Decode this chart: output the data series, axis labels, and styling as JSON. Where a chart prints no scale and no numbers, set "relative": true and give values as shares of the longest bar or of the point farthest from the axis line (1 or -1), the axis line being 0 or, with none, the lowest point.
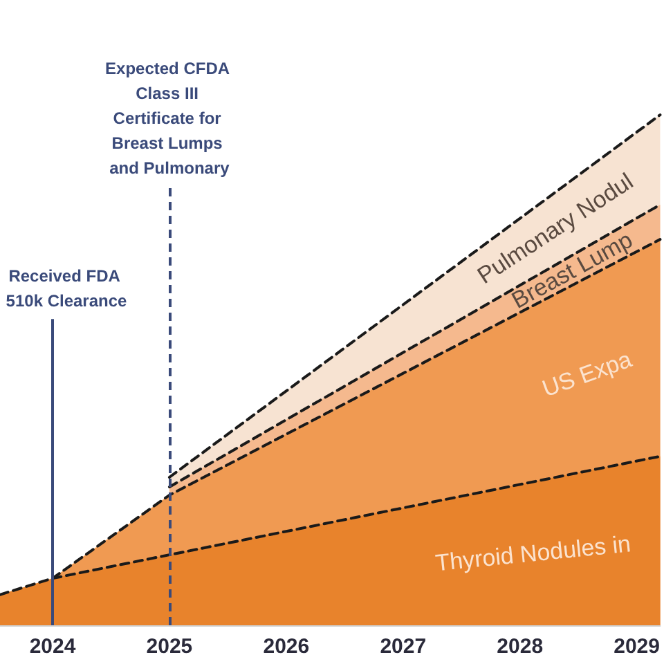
{
  "chart_data": {
    "type": "area",
    "relative": true,
    "stacked": true,
    "x": [
      2023.55,
      2024,
      2025,
      2029.2
    ],
    "xlim": [
      2023.55,
      2029.2
    ],
    "xticks": [
      2024,
      2025,
      2026,
      2027,
      2028,
      2029
    ],
    "grid": false,
    "legend": false,
    "marker": "none",
    "series": [
      {
        "name": "Thyroid Nodules in",
        "color": "#e8832c",
        "values": [
          0.06,
          0.092,
          0.138,
          0.331
        ],
        "line_style": "dashed"
      },
      {
        "name": "US Expa",
        "color": "#f09a52",
        "values": [
          null,
          0,
          0.117,
          0.425
        ],
        "line_style": "dashed"
      },
      {
        "name": "Breast Lump",
        "color": "#f5b98e",
        "values": [
          null,
          null,
          0.016,
          0.068
        ],
        "line_style": "dashed"
      },
      {
        "name": "Pulmonary Nodul",
        "color": "#f7e3d2",
        "values": [
          null,
          null,
          0.019,
          0.176
        ],
        "line_style": "dashed"
      }
    ],
    "ref_lines": [
      {
        "axis": "x",
        "value": 2024,
        "label": "Received FDA 510k Clearance",
        "line_style": "solid",
        "color": "#3a4a7a"
      },
      {
        "axis": "x",
        "value": 2025,
        "label": "Expected CFDA Class III Certificate for Breast Lumps and Pulmonary",
        "line_style": "dashed",
        "color": "#3a4a7a"
      }
    ]
  }
}
